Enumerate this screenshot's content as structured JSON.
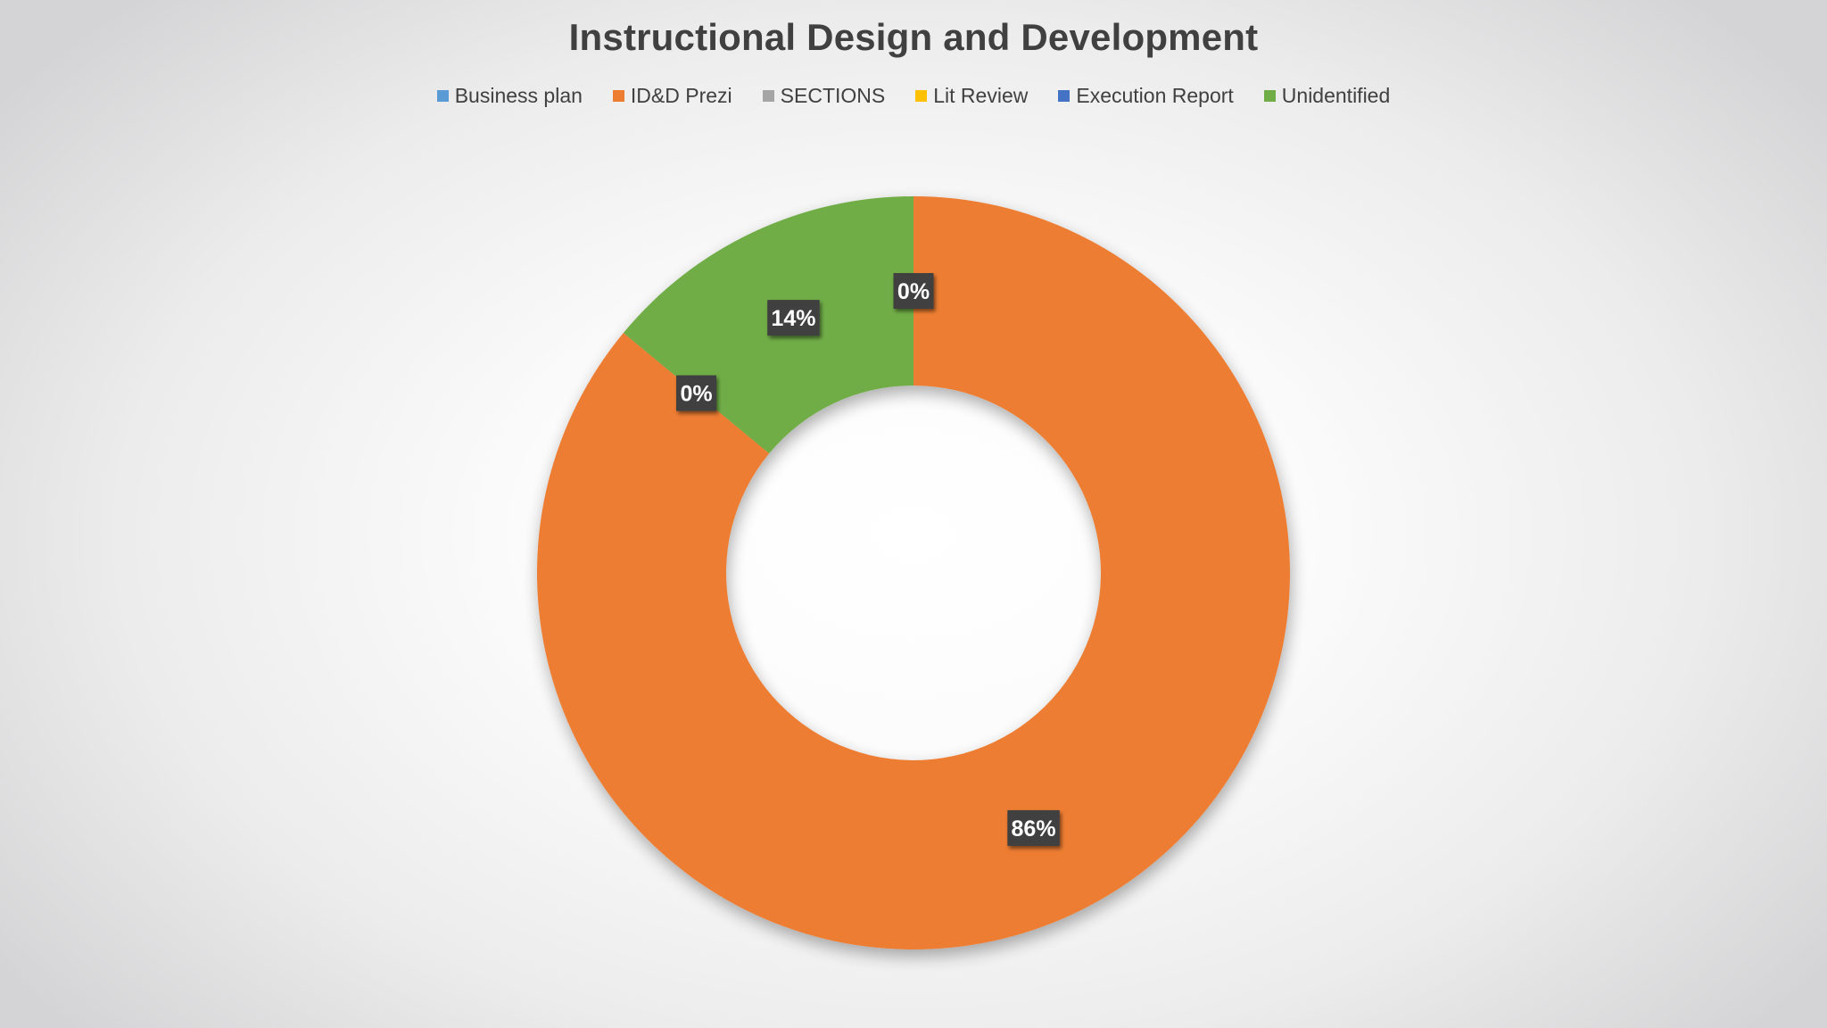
{
  "chart_data": {
    "type": "pie",
    "title": "Instructional Design and Development",
    "legend_position": "top",
    "hole": true,
    "slices": [
      {
        "name": "Business plan",
        "value": 0,
        "label": "0%",
        "color": "#5B9BD5"
      },
      {
        "name": "ID&D Prezi",
        "value": 86,
        "label": "86%",
        "color": "#ED7D31"
      },
      {
        "name": "SECTIONS",
        "value": 0,
        "label": "",
        "color": "#A5A5A5"
      },
      {
        "name": "Lit Review",
        "value": 0,
        "label": "",
        "color": "#FFC000"
      },
      {
        "name": "Execution Report",
        "value": 0,
        "label": "0%",
        "color": "#4472C4"
      },
      {
        "name": "Unidentified",
        "value": 14,
        "label": "14%",
        "color": "#70AD47"
      }
    ]
  }
}
